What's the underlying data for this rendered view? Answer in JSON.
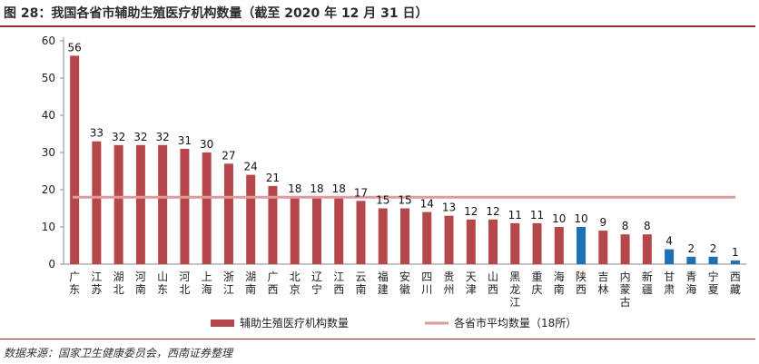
{
  "header": {
    "title": "图 28：我国各省市辅助生殖医疗机构数量（截至 2020 年 12 月 31 日）"
  },
  "footer": {
    "source": "数据来源：国家卫生健康委员会，西南证券整理"
  },
  "colors": {
    "bar_default": "#b5474a",
    "bar_highlight": "#1f6fb5",
    "avg_line": "#de9a9c",
    "accent_rule": "#9b2d30"
  },
  "chart_data": {
    "type": "bar",
    "title": "",
    "xlabel": "",
    "ylabel": "",
    "ylim": [
      0,
      60
    ],
    "yticks": [
      0,
      10,
      20,
      30,
      40,
      50,
      60
    ],
    "categories": [
      "广东",
      "江苏",
      "湖北",
      "河南",
      "山东",
      "河北",
      "上海",
      "浙江",
      "湖南",
      "广西",
      "北京",
      "辽宁",
      "江西",
      "云南",
      "福建",
      "安徽",
      "四川",
      "贵州",
      "天津",
      "山西",
      "黑龙江",
      "重庆",
      "海南",
      "陕西",
      "吉林",
      "内蒙古",
      "新疆",
      "甘肃",
      "青海",
      "宁夏",
      "西藏"
    ],
    "values": [
      56,
      33,
      32,
      32,
      32,
      31,
      30,
      27,
      24,
      21,
      18,
      18,
      18,
      17,
      15,
      15,
      14,
      13,
      12,
      12,
      11,
      11,
      10,
      10,
      9,
      8,
      8,
      4,
      2,
      2,
      1
    ],
    "highlight_categories": [
      "陕西",
      "甘肃",
      "青海",
      "宁夏",
      "西藏"
    ],
    "series": [
      {
        "name": "辅助生殖医疗机构数量",
        "type": "bar"
      },
      {
        "name": "各省市平均数量（18所）",
        "type": "line",
        "value": 18
      }
    ],
    "legend_position": "bottom"
  }
}
